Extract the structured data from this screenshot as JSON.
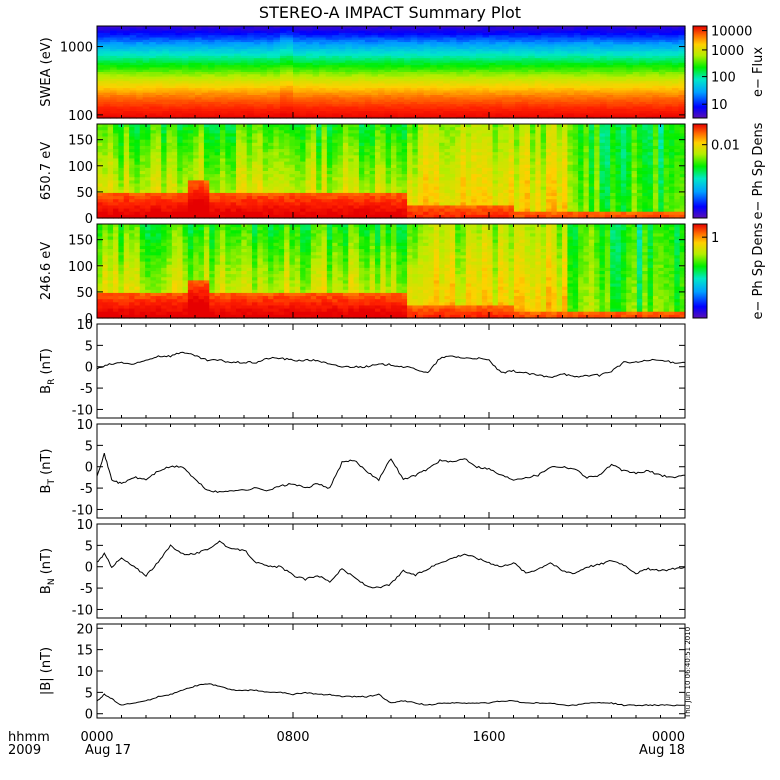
{
  "title": "STEREO-A IMPACT Summary Plot",
  "stamp": "Thu Jun 10 06:40:51 2010",
  "time_axis": {
    "row1": [
      "hhmm",
      "0000",
      "0800",
      "1600",
      "0000"
    ],
    "row2": [
      "2009",
      "Aug 17",
      "",
      "",
      "Aug 18"
    ],
    "hours": [
      0,
      8,
      16,
      24
    ]
  },
  "colors": {
    "line": "#000000",
    "spectrum": [
      "#5a0fb4",
      "#0000ff",
      "#00a0ff",
      "#00e8c8",
      "#00ee00",
      "#b4ee00",
      "#ffd000",
      "#ff6a00",
      "#ff2000",
      "#e60000"
    ]
  },
  "chart_data": [
    {
      "type": "heatmap",
      "panel": "swea",
      "ylabel": "SWEA (eV)",
      "yscale": "log",
      "ylim": [
        90,
        2000
      ],
      "yticks": [
        100,
        1000
      ],
      "ytick_labels": [
        "100",
        "1000"
      ],
      "colorbar": {
        "label": "e− Flux",
        "scale": "log",
        "ticks": [
          "10",
          "100",
          "1000",
          "10000"
        ]
      },
      "description_bands_eV": [
        1800,
        1200,
        800,
        500,
        300,
        200,
        140,
        100
      ],
      "band_levels": [
        0.08,
        0.2,
        0.35,
        0.48,
        0.6,
        0.72,
        0.82,
        0.95
      ]
    },
    {
      "type": "heatmap",
      "panel": "pad650",
      "ylabel": "650.7 eV",
      "ylim": [
        0,
        180
      ],
      "yticks": [
        0,
        50,
        100,
        150
      ],
      "colorbar": {
        "label": "e− Ph Sp Dens",
        "ticks": [
          "0.01"
        ]
      }
    },
    {
      "type": "heatmap",
      "panel": "pad246",
      "ylabel": "246.6 eV",
      "ylim": [
        0,
        180
      ],
      "yticks": [
        0,
        50,
        100,
        150
      ],
      "colorbar": {
        "label": "e− Ph Sp Dens",
        "ticks": [
          "1"
        ]
      }
    },
    {
      "type": "line",
      "panel": "br",
      "ylabel": "B",
      "ylabel_sub": "R",
      "ylabel_unit": " (nT)",
      "ylim": [
        -12,
        10
      ],
      "yticks": [
        -10,
        -5,
        0,
        5,
        10
      ],
      "x": [
        0,
        0.5,
        1,
        1.5,
        2,
        2.5,
        3,
        3.5,
        4,
        4.5,
        5,
        5.5,
        6,
        6.5,
        7,
        7.5,
        8,
        8.5,
        9,
        9.5,
        10,
        10.5,
        11,
        11.5,
        12,
        12.5,
        13,
        13.5,
        14,
        14.5,
        15,
        15.5,
        16,
        16.5,
        17,
        17.5,
        18,
        18.5,
        19,
        19.5,
        20,
        20.5,
        21,
        21.5,
        22,
        22.5,
        23,
        23.5,
        24
      ],
      "y": [
        -0.5,
        0.5,
        1,
        0.5,
        1.5,
        2.5,
        2.5,
        3.5,
        2.5,
        1.5,
        1.5,
        1,
        1,
        1,
        2,
        2,
        1.5,
        1.5,
        1.5,
        0.5,
        0,
        0,
        0,
        0.5,
        0.5,
        0,
        -0.5,
        -1.5,
        2,
        2.5,
        2,
        2,
        1.5,
        -1.5,
        -1,
        -1.5,
        -2,
        -2.5,
        -1.5,
        -2.5,
        -2,
        -2,
        -1,
        1,
        1,
        1.5,
        1.5,
        1,
        1
      ]
    },
    {
      "type": "line",
      "panel": "bt",
      "ylabel": "B",
      "ylabel_sub": "T",
      "ylabel_unit": " (nT)",
      "ylim": [
        -12,
        10
      ],
      "yticks": [
        -10,
        -5,
        0,
        5,
        10
      ],
      "x": [
        0,
        0.3,
        0.6,
        1,
        1.5,
        2,
        2.5,
        3,
        3.5,
        4,
        4.5,
        5,
        5.5,
        6,
        6.5,
        7,
        7.5,
        8,
        8.5,
        9,
        9.5,
        10,
        10.5,
        11,
        11.5,
        12,
        12.5,
        13,
        13.5,
        14,
        14.5,
        15,
        15.5,
        16,
        16.5,
        17,
        17.5,
        18,
        18.5,
        19,
        19.5,
        20,
        20.5,
        21,
        21.5,
        22,
        22.5,
        23,
        23.5,
        24
      ],
      "y": [
        -2,
        3,
        -3,
        -4,
        -2.5,
        -3,
        -1,
        0,
        0,
        -3,
        -5.5,
        -6,
        -5.5,
        -5.5,
        -5,
        -5.5,
        -4.5,
        -4,
        -5,
        -4,
        -5,
        1,
        1.5,
        -1,
        -3,
        2,
        -3,
        -2,
        -0.5,
        1.5,
        1,
        2,
        0,
        -0.5,
        -2,
        -3,
        -2.5,
        -2,
        0,
        0,
        -0.5,
        -2.5,
        -2,
        0.5,
        -1,
        -1.5,
        -1,
        -2,
        -2.5,
        -2
      ]
    },
    {
      "type": "line",
      "panel": "bn",
      "ylabel": "B",
      "ylabel_sub": "N",
      "ylabel_unit": " (nT)",
      "ylim": [
        -12,
        10
      ],
      "yticks": [
        -10,
        -5,
        0,
        5,
        10
      ],
      "x": [
        0,
        0.3,
        0.6,
        1,
        1.5,
        2,
        2.5,
        3,
        3.5,
        4,
        4.5,
        5,
        5.5,
        6,
        6.5,
        7,
        7.5,
        8,
        8.5,
        9,
        9.5,
        10,
        10.5,
        11,
        11.5,
        12,
        12.5,
        13,
        13.5,
        14,
        14.5,
        15,
        15.5,
        16,
        16.5,
        17,
        17.5,
        18,
        18.5,
        19,
        19.5,
        20,
        20.5,
        21,
        21.5,
        22,
        22.5,
        23,
        23.5,
        24
      ],
      "y": [
        1,
        3,
        0,
        2,
        0,
        -2,
        1,
        5,
        3,
        3,
        4,
        6,
        4,
        4,
        1,
        0,
        0,
        -2,
        -3,
        -2,
        -3.5,
        -0.5,
        -2.5,
        -4.5,
        -5,
        -4,
        -1,
        -2,
        -0.5,
        1,
        2,
        3,
        2,
        1,
        0,
        1,
        -1.5,
        -0.5,
        1,
        -1,
        -1.5,
        0,
        0.5,
        1.5,
        0.5,
        -1.5,
        -0.5,
        -1,
        -0.5,
        0
      ]
    },
    {
      "type": "line",
      "panel": "bmag",
      "ylabel": "|B| (nT)",
      "ylim": [
        -1,
        21
      ],
      "yticks": [
        0,
        5,
        10,
        15,
        20
      ],
      "x": [
        0,
        0.3,
        0.6,
        1,
        1.5,
        2,
        2.5,
        3,
        3.5,
        4,
        4.5,
        5,
        5.5,
        6,
        6.5,
        7,
        7.5,
        8,
        8.5,
        9,
        9.5,
        10,
        10.5,
        11,
        11.5,
        12,
        12.5,
        13,
        13.5,
        14,
        14.5,
        15,
        15.5,
        16,
        16.5,
        17,
        17.5,
        18,
        18.5,
        19,
        19.5,
        20,
        20.5,
        21,
        21.5,
        22,
        22.5,
        23,
        23.5,
        24
      ],
      "y": [
        3,
        4.5,
        3.5,
        2,
        2.5,
        3,
        4,
        4.5,
        5.5,
        6.5,
        7,
        6.5,
        5.5,
        5.5,
        5.5,
        5,
        5,
        4.5,
        5,
        4.5,
        4.5,
        4,
        4,
        4,
        4.5,
        2.5,
        3,
        2.5,
        2,
        2.5,
        2.5,
        2.5,
        2.5,
        2.5,
        3,
        3,
        2.5,
        2.5,
        2.5,
        2,
        2,
        2.5,
        2.5,
        2.5,
        2,
        2,
        2,
        2,
        2,
        2
      ]
    }
  ]
}
